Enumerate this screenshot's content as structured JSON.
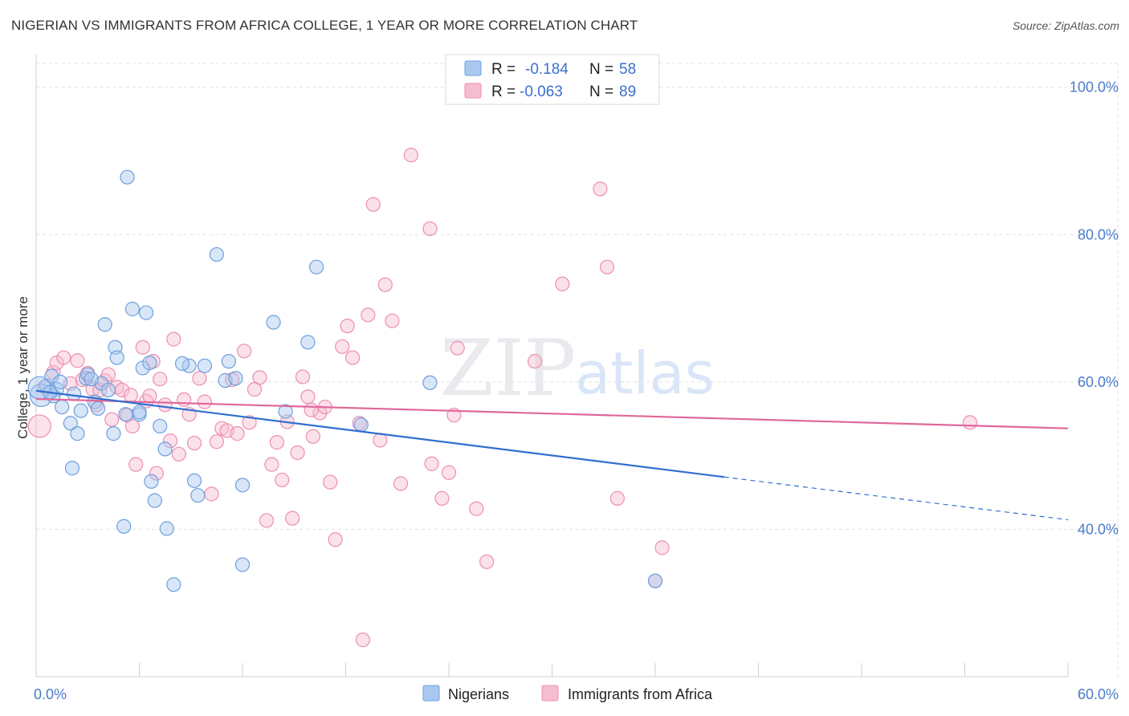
{
  "title": "NIGERIAN VS IMMIGRANTS FROM AFRICA COLLEGE, 1 YEAR OR MORE CORRELATION CHART",
  "source": "Source: ZipAtlas.com",
  "watermark": {
    "zip": "ZIP",
    "atlas": "atlas"
  },
  "legend": {
    "r_label": "R =",
    "n_label": "N =",
    "rows": [
      {
        "r": "-0.184",
        "n": "58"
      },
      {
        "r": "-0.063",
        "n": "89"
      }
    ]
  },
  "colors": {
    "blue_fill": "#a9c8f0",
    "blue_stroke": "#6f9fdc",
    "blue_line": "#2f6fd0",
    "pink_fill": "#f6bcd0",
    "pink_stroke": "#ec8fb0",
    "pink_line": "#e0689a",
    "grid": "#e0e0e0",
    "axis_label": "#4a7cc9"
  },
  "chart_data": {
    "type": "scatter",
    "xlabel": "",
    "ylabel": "College, 1 year or more",
    "xlim": [
      0,
      60
    ],
    "ylim": [
      20,
      104
    ],
    "x_tick_labels": [
      {
        "value": 0,
        "label": "0.0%"
      },
      {
        "value": 60,
        "label": "60.0%"
      }
    ],
    "y_tick_labels": [
      {
        "value": 100,
        "label": "100.0%"
      },
      {
        "value": 80,
        "label": "80.0%"
      },
      {
        "value": 60,
        "label": "60.0%"
      },
      {
        "value": 40,
        "label": "40.0%"
      }
    ],
    "grid": true,
    "legend_position": "top-center",
    "series": [
      {
        "name": "Nigerians",
        "color": "blue",
        "trend": {
          "x0": 0,
          "y0": 58.8,
          "x1": 40,
          "y1": 47.1,
          "dash_to": 60,
          "dash_y": 41.3
        },
        "points": [
          [
            0.3,
            58.2
          ],
          [
            0.6,
            59.5
          ],
          [
            0.9,
            60.8
          ],
          [
            1.2,
            59.0
          ],
          [
            1.0,
            58.1
          ],
          [
            1.5,
            56.6
          ],
          [
            1.4,
            60.0
          ],
          [
            2.0,
            54.4
          ],
          [
            2.2,
            58.4
          ],
          [
            2.4,
            53.0
          ],
          [
            2.6,
            56.1
          ],
          [
            2.1,
            48.3
          ],
          [
            2.9,
            60.5
          ],
          [
            3.0,
            61.0
          ],
          [
            3.4,
            57.3
          ],
          [
            3.6,
            56.4
          ],
          [
            3.8,
            59.8
          ],
          [
            4.2,
            58.9
          ],
          [
            4.0,
            67.8
          ],
          [
            4.5,
            53.0
          ],
          [
            4.6,
            64.7
          ],
          [
            4.7,
            63.3
          ],
          [
            5.2,
            55.6
          ],
          [
            5.1,
            40.4
          ],
          [
            5.3,
            87.8
          ],
          [
            5.6,
            69.9
          ],
          [
            6.0,
            55.6
          ],
          [
            6.2,
            61.9
          ],
          [
            6.0,
            55.9
          ],
          [
            6.4,
            69.4
          ],
          [
            6.6,
            62.6
          ],
          [
            6.7,
            46.5
          ],
          [
            6.9,
            43.9
          ],
          [
            7.2,
            54.0
          ],
          [
            7.5,
            50.9
          ],
          [
            7.6,
            40.1
          ],
          [
            8.0,
            32.5
          ],
          [
            8.9,
            62.2
          ],
          [
            9.2,
            46.6
          ],
          [
            9.4,
            44.6
          ],
          [
            9.8,
            62.2
          ],
          [
            10.5,
            77.3
          ],
          [
            11.0,
            60.2
          ],
          [
            11.2,
            62.8
          ],
          [
            11.6,
            60.5
          ],
          [
            12.0,
            46.0
          ],
          [
            12.0,
            35.2
          ],
          [
            13.8,
            68.1
          ],
          [
            14.5,
            56.0
          ],
          [
            15.8,
            65.4
          ],
          [
            16.3,
            75.6
          ],
          [
            18.9,
            54.2
          ],
          [
            22.9,
            59.9
          ],
          [
            36.0,
            33.0
          ],
          [
            0.2,
            59.2
          ],
          [
            0.8,
            58.6
          ],
          [
            3.2,
            60.4
          ],
          [
            8.5,
            62.5
          ]
        ]
      },
      {
        "name": "Immigrants from Africa",
        "color": "pink",
        "trend": {
          "x0": 0,
          "y0": 57.7,
          "x1": 60,
          "y1": 53.7
        },
        "points": [
          [
            0.2,
            54.0
          ],
          [
            0.5,
            59.3
          ],
          [
            1.0,
            61.3
          ],
          [
            1.2,
            62.6
          ],
          [
            1.6,
            63.3
          ],
          [
            2.0,
            59.8
          ],
          [
            2.4,
            62.9
          ],
          [
            2.7,
            60.3
          ],
          [
            3.0,
            61.2
          ],
          [
            3.3,
            59.0
          ],
          [
            3.5,
            56.9
          ],
          [
            3.7,
            58.9
          ],
          [
            4.0,
            60.2
          ],
          [
            4.2,
            61.0
          ],
          [
            4.4,
            54.9
          ],
          [
            4.7,
            59.3
          ],
          [
            5.0,
            58.9
          ],
          [
            5.3,
            55.5
          ],
          [
            5.5,
            58.2
          ],
          [
            5.6,
            54.0
          ],
          [
            5.8,
            48.8
          ],
          [
            6.2,
            64.7
          ],
          [
            6.4,
            57.4
          ],
          [
            6.6,
            58.1
          ],
          [
            6.8,
            62.8
          ],
          [
            7.0,
            47.6
          ],
          [
            7.2,
            60.4
          ],
          [
            7.5,
            56.9
          ],
          [
            7.8,
            52.0
          ],
          [
            8.0,
            65.8
          ],
          [
            8.3,
            50.2
          ],
          [
            8.6,
            57.6
          ],
          [
            8.9,
            55.6
          ],
          [
            9.2,
            51.7
          ],
          [
            9.5,
            60.5
          ],
          [
            9.8,
            57.3
          ],
          [
            10.2,
            44.8
          ],
          [
            10.5,
            51.9
          ],
          [
            10.8,
            53.7
          ],
          [
            11.1,
            53.4
          ],
          [
            11.4,
            60.3
          ],
          [
            11.7,
            53.0
          ],
          [
            12.1,
            64.2
          ],
          [
            12.4,
            54.5
          ],
          [
            12.7,
            59.0
          ],
          [
            13.0,
            60.6
          ],
          [
            13.4,
            41.2
          ],
          [
            13.7,
            48.8
          ],
          [
            14.0,
            51.8
          ],
          [
            14.3,
            46.7
          ],
          [
            14.6,
            54.6
          ],
          [
            14.9,
            41.5
          ],
          [
            15.2,
            50.4
          ],
          [
            15.5,
            60.7
          ],
          [
            15.8,
            58.0
          ],
          [
            16.1,
            52.6
          ],
          [
            16.5,
            55.8
          ],
          [
            16.8,
            56.6
          ],
          [
            17.1,
            46.4
          ],
          [
            17.4,
            38.6
          ],
          [
            17.8,
            64.8
          ],
          [
            18.1,
            67.6
          ],
          [
            18.4,
            63.3
          ],
          [
            18.8,
            54.4
          ],
          [
            19.3,
            69.1
          ],
          [
            19.6,
            84.1
          ],
          [
            20.0,
            52.1
          ],
          [
            20.3,
            73.2
          ],
          [
            20.7,
            68.3
          ],
          [
            21.2,
            46.2
          ],
          [
            21.8,
            90.8
          ],
          [
            22.9,
            80.8
          ],
          [
            23.0,
            48.9
          ],
          [
            23.6,
            44.2
          ],
          [
            24.0,
            47.7
          ],
          [
            24.3,
            55.5
          ],
          [
            24.5,
            64.6
          ],
          [
            25.6,
            42.8
          ],
          [
            26.2,
            35.6
          ],
          [
            19.0,
            25.0
          ],
          [
            29.0,
            62.8
          ],
          [
            30.6,
            73.3
          ],
          [
            32.8,
            86.2
          ],
          [
            33.2,
            75.6
          ],
          [
            33.8,
            44.2
          ],
          [
            36.0,
            33.0
          ],
          [
            36.4,
            37.5
          ],
          [
            54.3,
            54.5
          ],
          [
            16.0,
            56.2
          ]
        ]
      }
    ]
  }
}
